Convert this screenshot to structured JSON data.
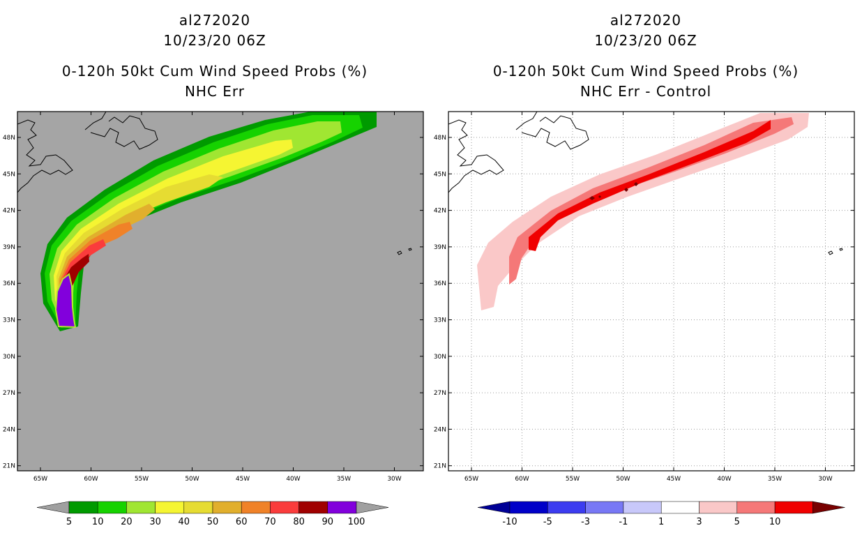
{
  "chart_data": [
    {
      "type": "heatmap",
      "storm_id": "al272020",
      "date": "10/23/20 06Z",
      "title": "0-120h 50kt Cum Wind Speed Probs (%)",
      "subtitle": "NHC Err",
      "lon_ticks": [
        "65W",
        "60W",
        "55W",
        "50W",
        "45W",
        "40W",
        "35W",
        "30W"
      ],
      "lat_ticks": [
        "48N",
        "45N",
        "42N",
        "39N",
        "36N",
        "33N",
        "30N",
        "27N",
        "24N",
        "21N"
      ],
      "grid": false,
      "track_start_lat_lon": [
        32.5,
        -61.0
      ],
      "track_end_lat_lon": [
        49.5,
        -33.0
      ],
      "colorbar": {
        "labels": [
          "5",
          "10",
          "20",
          "30",
          "40",
          "50",
          "60",
          "70",
          "80",
          "90",
          "100"
        ],
        "colors": [
          "#009a00",
          "#16d200",
          "#a0e632",
          "#f5f532",
          "#e6dc32",
          "#e1af2d",
          "#f08228",
          "#fa3c3c",
          "#a00000",
          "#8200dc"
        ],
        "over_color": "#a0a0a0",
        "under_color": "#a0a0a0"
      },
      "background_color": "#a5a5a5"
    },
    {
      "type": "heatmap",
      "storm_id": "al272020",
      "date": "10/23/20 06Z",
      "title": "0-120h 50kt Cum Wind Speed Probs (%)",
      "subtitle": "NHC Err - Control",
      "lon_ticks": [
        "65W",
        "60W",
        "55W",
        "50W",
        "45W",
        "40W",
        "35W",
        "30W"
      ],
      "lat_ticks": [
        "48N",
        "45N",
        "42N",
        "39N",
        "36N",
        "33N",
        "30N",
        "27N",
        "24N",
        "21N"
      ],
      "grid": true,
      "colorbar": {
        "labels": [
          "-10",
          "-5",
          "-3",
          "-1",
          "1",
          "3",
          "5",
          "10"
        ],
        "colors": [
          "#0000c8",
          "#3c3cf0",
          "#7878f5",
          "#c8c8fa",
          "#ffffff",
          "#fac8c8",
          "#f57878",
          "#f00000"
        ],
        "under_color": "#000096",
        "over_color": "#780000"
      },
      "background_color": "#ffffff"
    }
  ]
}
